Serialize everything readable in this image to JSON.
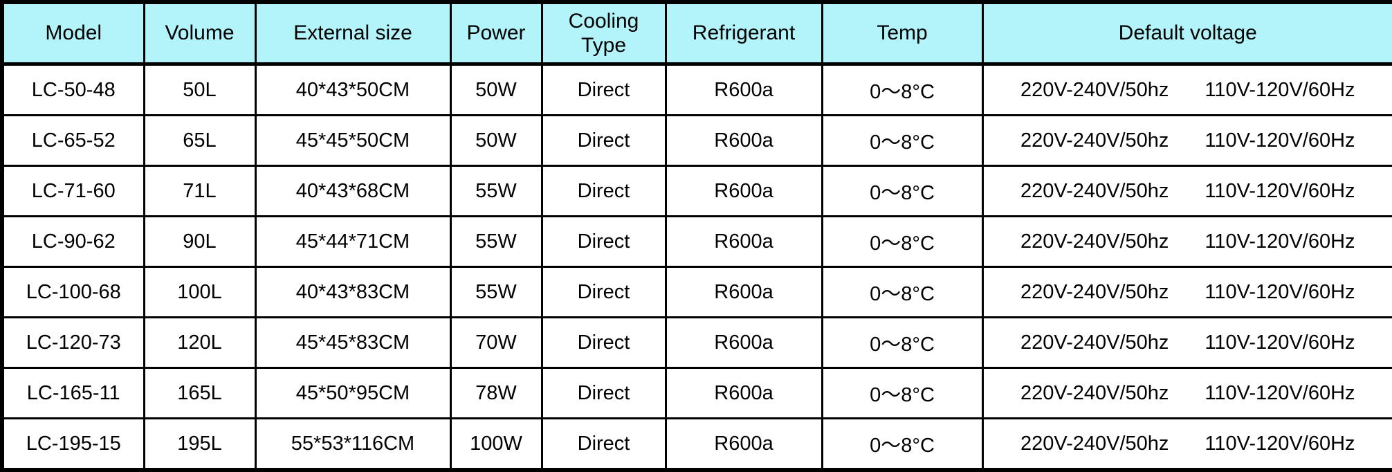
{
  "table": {
    "style": {
      "header_bg": "#b3f4fa",
      "border_color": "#000000",
      "text_color": "#000000"
    },
    "columns": [
      {
        "key": "model",
        "label": "Model"
      },
      {
        "key": "volume",
        "label": "Volume"
      },
      {
        "key": "external_size",
        "label": "External size"
      },
      {
        "key": "power",
        "label": "Power"
      },
      {
        "key": "cooling_type",
        "label": "Cooling Type"
      },
      {
        "key": "refrigerant",
        "label": "Refrigerant"
      },
      {
        "key": "temp",
        "label": "Temp"
      },
      {
        "key": "default_voltage",
        "label": "Default voltage"
      }
    ],
    "rows": [
      {
        "model": "LC-50-48",
        "volume": "50L",
        "external_size": "40*43*50CM",
        "power": "50W",
        "cooling_type": "Direct",
        "refrigerant": "R600a",
        "temp": "0～8°C",
        "default_voltage": [
          "220V-240V/50hz",
          "110V-120V/60Hz"
        ]
      },
      {
        "model": "LC-65-52",
        "volume": "65L",
        "external_size": "45*45*50CM",
        "power": "50W",
        "cooling_type": "Direct",
        "refrigerant": "R600a",
        "temp": "0～8°C",
        "default_voltage": [
          "220V-240V/50hz",
          "110V-120V/60Hz"
        ]
      },
      {
        "model": "LC-71-60",
        "volume": "71L",
        "external_size": "40*43*68CM",
        "power": "55W",
        "cooling_type": "Direct",
        "refrigerant": "R600a",
        "temp": "0～8°C",
        "default_voltage": [
          "220V-240V/50hz",
          "110V-120V/60Hz"
        ]
      },
      {
        "model": "LC-90-62",
        "volume": "90L",
        "external_size": "45*44*71CM",
        "power": "55W",
        "cooling_type": "Direct",
        "refrigerant": "R600a",
        "temp": "0～8°C",
        "default_voltage": [
          "220V-240V/50hz",
          "110V-120V/60Hz"
        ]
      },
      {
        "model": "LC-100-68",
        "volume": "100L",
        "external_size": "40*43*83CM",
        "power": "55W",
        "cooling_type": "Direct",
        "refrigerant": "R600a",
        "temp": "0～8°C",
        "default_voltage": [
          "220V-240V/50hz",
          "110V-120V/60Hz"
        ]
      },
      {
        "model": "LC-120-73",
        "volume": "120L",
        "external_size": "45*45*83CM",
        "power": "70W",
        "cooling_type": "Direct",
        "refrigerant": "R600a",
        "temp": "0～8°C",
        "default_voltage": [
          "220V-240V/50hz",
          "110V-120V/60Hz"
        ]
      },
      {
        "model": "LC-165-11",
        "volume": "165L",
        "external_size": "45*50*95CM",
        "power": "78W",
        "cooling_type": "Direct",
        "refrigerant": "R600a",
        "temp": "0～8°C",
        "default_voltage": [
          "220V-240V/50hz",
          "110V-120V/60Hz"
        ]
      },
      {
        "model": "LC-195-15",
        "volume": "195L",
        "external_size": "55*53*116CM",
        "power": "100W",
        "cooling_type": "Direct",
        "refrigerant": "R600a",
        "temp": "0～8°C",
        "default_voltage": [
          "220V-240V/50hz",
          "110V-120V/60Hz"
        ]
      }
    ]
  }
}
